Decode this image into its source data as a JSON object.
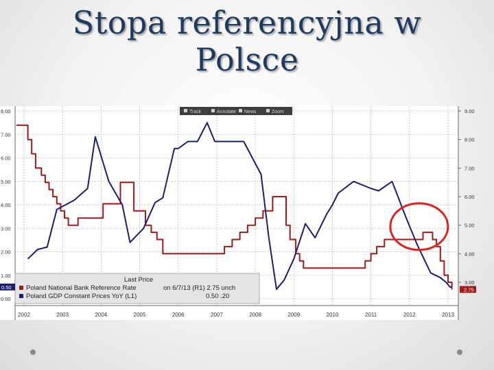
{
  "slide": {
    "title_line1": "Stopa referencyjna w",
    "title_line2": "Polsce"
  },
  "toolbar": {
    "items": [
      {
        "label": "Track",
        "icon": "track-icon"
      },
      {
        "label": "Annotate",
        "icon": "pencil-icon"
      },
      {
        "label": "News",
        "icon": "news-icon"
      },
      {
        "label": "Zoom",
        "icon": "zoom-icon"
      }
    ]
  },
  "colors": {
    "rate": "#a01919",
    "gdp": "#1c1c6e",
    "circle": "#e0201e",
    "grid": "#b7b7b7"
  },
  "chart_data": {
    "type": "line",
    "title": "",
    "xlabel": "",
    "ylabel": "",
    "x_ticks": [
      "2002",
      "2003",
      "2004",
      "2005",
      "2006",
      "2007",
      "2008",
      "2009",
      "2010",
      "2011",
      "2012",
      "2013"
    ],
    "xlim": [
      2002,
      2013.2
    ],
    "left_axis": {
      "ticks": [
        "8.00",
        "7.00",
        "6.00",
        "5.00",
        "4.00",
        "3.00",
        "2.00",
        "1.00",
        "0.50",
        "0.00"
      ],
      "ylim": [
        0,
        8
      ],
      "last_value_label": "0.50"
    },
    "right_axis": {
      "ticks": [
        "9.00",
        "8.00",
        "7.00",
        "6.00",
        "5.00",
        "4.00",
        "3.00"
      ],
      "ylim": [
        1.0,
        9.0
      ],
      "last_value_label": "2.75"
    },
    "legend": {
      "header": "Last Price",
      "placement": "bottom-left",
      "rows": [
        {
          "name": "Poland National Bank Reference Rate",
          "detail": "on 6/7/13 (R1) 2.75 unch",
          "color": "#a01919"
        },
        {
          "name": "Poland GDP Constant Prices YoY (L1)",
          "detail": "0.50 .20",
          "color": "#1c1c6e"
        }
      ]
    },
    "series": [
      {
        "axis": "right",
        "color": "#a01919",
        "step": true,
        "x": [
          2001.8,
          2002.1,
          2002.2,
          2002.3,
          2002.45,
          2002.55,
          2002.65,
          2002.75,
          2002.85,
          2002.95,
          2003.05,
          2003.15,
          2003.4,
          2004.05,
          2004.5,
          2004.85,
          2005.15,
          2005.3,
          2005.45,
          2005.6,
          2006.15,
          2006.9,
          2007.2,
          2007.4,
          2007.6,
          2007.8,
          2008.0,
          2008.2,
          2008.45,
          2008.8,
          2008.9,
          2009.05,
          2009.15,
          2009.25,
          2009.45,
          2010.6,
          2010.85,
          2011.0,
          2011.15,
          2011.35,
          2011.5,
          2011.95,
          2012.35,
          2012.45,
          2012.5,
          2012.6,
          2012.7,
          2012.8,
          2012.9,
          2013.0,
          2013.1
        ],
        "values": [
          8.5,
          8.0,
          7.5,
          7.0,
          6.75,
          6.5,
          6.25,
          6.0,
          5.75,
          5.5,
          5.25,
          5.0,
          5.25,
          5.75,
          6.5,
          5.5,
          5.0,
          4.75,
          4.5,
          4.0,
          4.0,
          4.0,
          4.25,
          4.5,
          4.75,
          5.0,
          5.25,
          5.5,
          6.0,
          5.0,
          4.5,
          4.0,
          3.75,
          3.5,
          3.5,
          3.5,
          3.75,
          4.0,
          4.25,
          4.5,
          4.5,
          4.5,
          4.75,
          4.75,
          4.75,
          4.5,
          4.25,
          3.75,
          3.25,
          3.0,
          2.75
        ]
      },
      {
        "axis": "left",
        "color": "#1c1c6e",
        "step": false,
        "x": [
          2002.1,
          2002.35,
          2002.6,
          2002.85,
          2003.3,
          2003.65,
          2003.85,
          2004.2,
          2004.55,
          2004.75,
          2005.1,
          2005.4,
          2005.6,
          2005.9,
          2006.0,
          2006.25,
          2006.5,
          2006.75,
          2006.95,
          2007.15,
          2007.4,
          2007.7,
          2008.15,
          2008.35,
          2008.55,
          2008.75,
          2009.0,
          2009.3,
          2009.55,
          2009.85,
          2010.0,
          2010.15,
          2010.55,
          2011.0,
          2011.2,
          2011.55,
          2011.9,
          2012.2,
          2012.55,
          2012.8,
          2012.95,
          2013.05,
          2013.1
        ],
        "values": [
          1.7,
          2.1,
          2.2,
          3.8,
          4.2,
          4.7,
          6.9,
          5.0,
          4.0,
          2.4,
          3.0,
          4.1,
          4.3,
          6.4,
          6.4,
          6.7,
          6.7,
          7.5,
          6.7,
          6.7,
          6.7,
          6.7,
          5.3,
          2.6,
          0.4,
          0.8,
          1.7,
          3.2,
          2.6,
          3.6,
          4.0,
          4.5,
          5.0,
          4.7,
          4.6,
          5.0,
          3.5,
          2.3,
          1.1,
          0.9,
          0.7,
          0.5,
          0.5
        ]
      }
    ],
    "annotation": {
      "shape": "circle",
      "center_x": 2012.25,
      "center_value_right_axis": 4.95
    }
  }
}
